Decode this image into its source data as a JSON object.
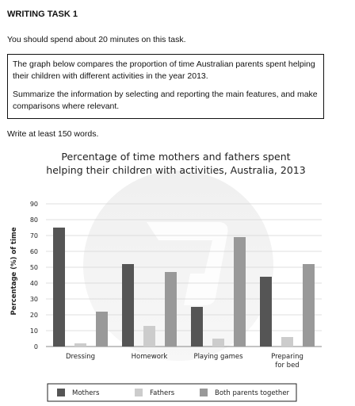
{
  "task": {
    "title": "WRITING TASK 1",
    "instruction": "You should spend about 20 minutes on this task.",
    "prompt_line1": "The graph below compares the proportion of time Australian parents spent helping their children with different activities in the year 2013.",
    "prompt_line2": "Summarize the information by selecting and reporting the main features, and make comparisons where relevant.",
    "word_count": "Write at least 150 words."
  },
  "chart_data": {
    "type": "bar",
    "title": "Percentage of time mothers and fathers spent",
    "subtitle": "helping their children with activities, Australia, 2013",
    "xlabel": "",
    "ylabel": "Percentage (%) of time",
    "ylim": [
      0,
      90
    ],
    "yticks": [
      "0",
      "10",
      "20",
      "30",
      "40",
      "50",
      "60",
      "70",
      "80",
      "90"
    ],
    "grid": true,
    "legend_position": "bottom",
    "categories": [
      [
        "Dressing"
      ],
      [
        "Homework"
      ],
      [
        "Playing games"
      ],
      [
        "Preparing",
        "for bed"
      ]
    ],
    "series": [
      {
        "name": "Mothers",
        "color": "#555555",
        "values": [
          75,
          52,
          25,
          44
        ]
      },
      {
        "name": "Fathers",
        "color": "#cccccc",
        "values": [
          2,
          13,
          5,
          6
        ]
      },
      {
        "name": "Both parents together",
        "color": "#999999",
        "values": [
          22,
          47,
          69,
          52
        ]
      }
    ]
  }
}
